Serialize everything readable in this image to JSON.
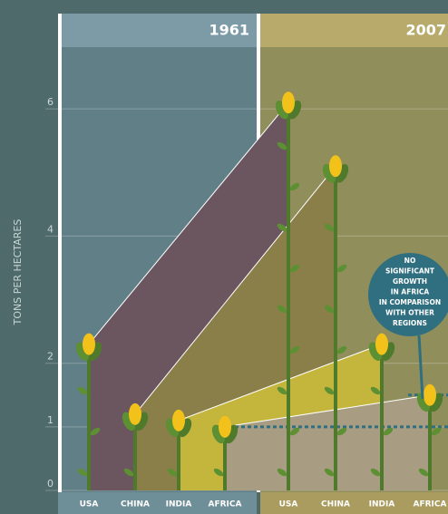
{
  "chart_data": {
    "type": "slope",
    "y_label": "TONS PER HECTARES",
    "categories": [
      "USA",
      "CHINA",
      "INDIA",
      "AFRICA"
    ],
    "colors": [
      "#6b5660",
      "#8a7f48",
      "#c4b63c",
      "#a89d82"
    ],
    "series": [
      {
        "name": "1961",
        "values": [
          2.3,
          1.2,
          1.1,
          1.0
        ]
      },
      {
        "name": "2007",
        "values": [
          6.1,
          5.1,
          2.3,
          1.5
        ]
      }
    ],
    "ylim": [
      0,
      7
    ],
    "yticks": [
      0,
      1,
      2,
      4,
      6
    ],
    "grid": true,
    "annotation": [
      "NO",
      "SIGNIFICANT",
      "GROWTH",
      "IN AFRICA",
      "IN COMPARISON",
      "WITH OTHER",
      "REGIONS"
    ]
  }
}
